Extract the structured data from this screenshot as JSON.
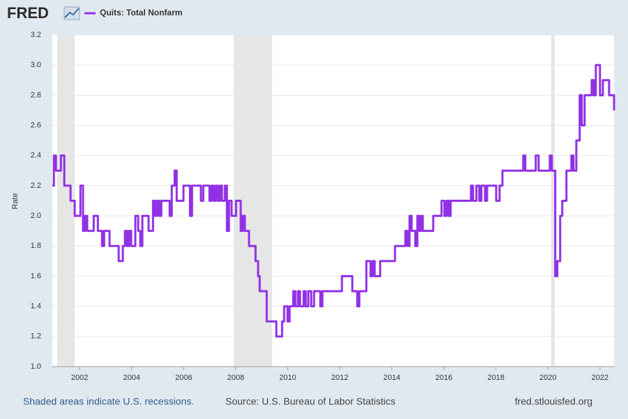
{
  "chart_data": {
    "type": "line",
    "logo": "FRED",
    "y_label": "Rate",
    "note": "Shaded areas indicate U.S. recessions.",
    "source": "Source: U.S. Bureau of Labor Statistics",
    "site": "fred.stlouisfed.org",
    "xlim": [
      2000.95,
      2022.54
    ],
    "xticks": [
      2002,
      2004,
      2006,
      2008,
      2010,
      2012,
      2014,
      2016,
      2018,
      2020,
      2022
    ],
    "ylim": [
      1.0,
      3.2
    ],
    "yticks": [
      {
        "value": 1.0,
        "label": "1.0"
      },
      1.2,
      1.4,
      1.6,
      1.8,
      {
        "value": 2.0,
        "label": "2.0"
      },
      2.2,
      2.4,
      2.6,
      2.8,
      {
        "value": 3.0,
        "label": "3.0"
      },
      3.2
    ],
    "grid": true,
    "recession_color": "#e6e6e6",
    "recessions": [
      [
        2001.14,
        2001.81
      ],
      [
        2007.92,
        2009.4
      ],
      [
        2020.12,
        2020.26
      ]
    ],
    "series": [
      {
        "name": "Quits: Total Nonfarm",
        "color": "#9131e6",
        "x": [
          2000.95,
          2001.01,
          2001.09,
          2001.17,
          2001.28,
          2001.41,
          2001.57,
          2001.65,
          2001.73,
          2001.81,
          2001.95,
          2002.03,
          2002.13,
          2002.21,
          2002.29,
          2002.46,
          2002.54,
          2002.62,
          2002.7,
          2002.78,
          2002.86,
          2002.94,
          2003.07,
          2003.15,
          2003.42,
          2003.5,
          2003.58,
          2003.66,
          2003.74,
          2003.82,
          2003.9,
          2003.98,
          2004.14,
          2004.25,
          2004.33,
          2004.41,
          2004.57,
          2004.65,
          2004.73,
          2004.82,
          2004.9,
          2004.98,
          2005.06,
          2005.14,
          2005.38,
          2005.46,
          2005.54,
          2005.65,
          2005.73,
          2005.91,
          2005.99,
          2006.18,
          2006.24,
          2006.32,
          2006.58,
          2006.66,
          2006.75,
          2006.91,
          2006.99,
          2007.07,
          2007.15,
          2007.23,
          2007.31,
          2007.39,
          2007.47,
          2007.58,
          2007.66,
          2007.74,
          2007.84,
          2008.01,
          2008.14,
          2008.19,
          2008.27,
          2008.35,
          2008.46,
          2008.51,
          2008.65,
          2008.76,
          2008.86,
          2008.92,
          2009.08,
          2009.19,
          2009.45,
          2009.56,
          2009.67,
          2009.78,
          2009.86,
          2009.94,
          2009.99,
          2010.07,
          2010.21,
          2010.29,
          2010.39,
          2010.47,
          2010.61,
          2010.69,
          2010.79,
          2010.9,
          2011.01,
          2011.14,
          2011.25,
          2011.33,
          2011.95,
          2012.08,
          2012.35,
          2012.48,
          2012.59,
          2012.67,
          2012.75,
          2012.88,
          2013.02,
          2013.1,
          2013.18,
          2013.26,
          2013.34,
          2013.45,
          2013.55,
          2014.04,
          2014.12,
          2014.44,
          2014.52,
          2014.6,
          2014.68,
          2014.76,
          2014.9,
          2014.98,
          2015.06,
          2015.14,
          2015.19,
          2015.51,
          2015.59,
          2015.83,
          2015.91,
          2016.02,
          2016.1,
          2016.18,
          2016.26,
          2016.96,
          2017.04,
          2017.12,
          2017.25,
          2017.36,
          2017.44,
          2017.58,
          2017.66,
          2017.92,
          2018.01,
          2018.14,
          2018.25,
          2018.92,
          2019.05,
          2019.13,
          2019.45,
          2019.53,
          2019.64,
          2019.99,
          2020.07,
          2020.15,
          2020.28,
          2020.36,
          2020.47,
          2020.55,
          2020.63,
          2020.71,
          2020.82,
          2020.9,
          2020.98,
          2021.09,
          2021.22,
          2021.3,
          2021.41,
          2021.6,
          2021.68,
          2021.76,
          2021.84,
          2021.92,
          2022.0,
          2022.11,
          2022.27,
          2022.35,
          2022.46,
          2022.54
        ],
        "values": [
          2.2,
          2.4,
          2.3,
          2.3,
          2.4,
          2.2,
          2.2,
          2.1,
          2.1,
          2.0,
          2.0,
          2.2,
          1.9,
          2.0,
          1.9,
          1.9,
          2.0,
          2.0,
          1.9,
          1.9,
          1.8,
          1.9,
          1.9,
          1.8,
          1.8,
          1.7,
          1.7,
          1.8,
          1.9,
          1.8,
          1.9,
          1.8,
          2.0,
          1.9,
          1.8,
          2.0,
          2.0,
          1.9,
          1.9,
          2.1,
          2.0,
          2.1,
          2.0,
          2.1,
          2.1,
          2.0,
          2.2,
          2.3,
          2.1,
          2.1,
          2.2,
          2.2,
          2.0,
          2.2,
          2.2,
          2.1,
          2.2,
          2.2,
          2.1,
          2.2,
          2.1,
          2.2,
          2.1,
          2.2,
          2.1,
          2.2,
          1.9,
          2.1,
          2.0,
          2.1,
          2.1,
          1.9,
          2.0,
          1.9,
          1.9,
          1.8,
          1.8,
          1.7,
          1.6,
          1.5,
          1.5,
          1.3,
          1.3,
          1.2,
          1.2,
          1.3,
          1.4,
          1.4,
          1.3,
          1.4,
          1.5,
          1.4,
          1.5,
          1.4,
          1.5,
          1.4,
          1.5,
          1.4,
          1.5,
          1.5,
          1.4,
          1.5,
          1.5,
          1.6,
          1.6,
          1.5,
          1.5,
          1.4,
          1.5,
          1.5,
          1.7,
          1.7,
          1.6,
          1.7,
          1.6,
          1.6,
          1.7,
          1.7,
          1.8,
          1.8,
          1.9,
          1.8,
          2.0,
          1.9,
          1.8,
          2.0,
          1.9,
          2.0,
          1.9,
          1.9,
          2.0,
          2.0,
          2.1,
          2.0,
          2.1,
          2.0,
          2.1,
          2.1,
          2.2,
          2.1,
          2.2,
          2.1,
          2.2,
          2.1,
          2.2,
          2.2,
          2.1,
          2.2,
          2.3,
          2.3,
          2.4,
          2.3,
          2.3,
          2.4,
          2.3,
          2.3,
          2.4,
          2.3,
          1.6,
          1.7,
          2.0,
          2.1,
          2.1,
          2.3,
          2.3,
          2.4,
          2.3,
          2.5,
          2.8,
          2.6,
          2.8,
          2.8,
          2.9,
          2.8,
          3.0,
          3.0,
          2.8,
          2.9,
          2.9,
          2.8,
          2.8,
          2.7
        ]
      }
    ]
  }
}
